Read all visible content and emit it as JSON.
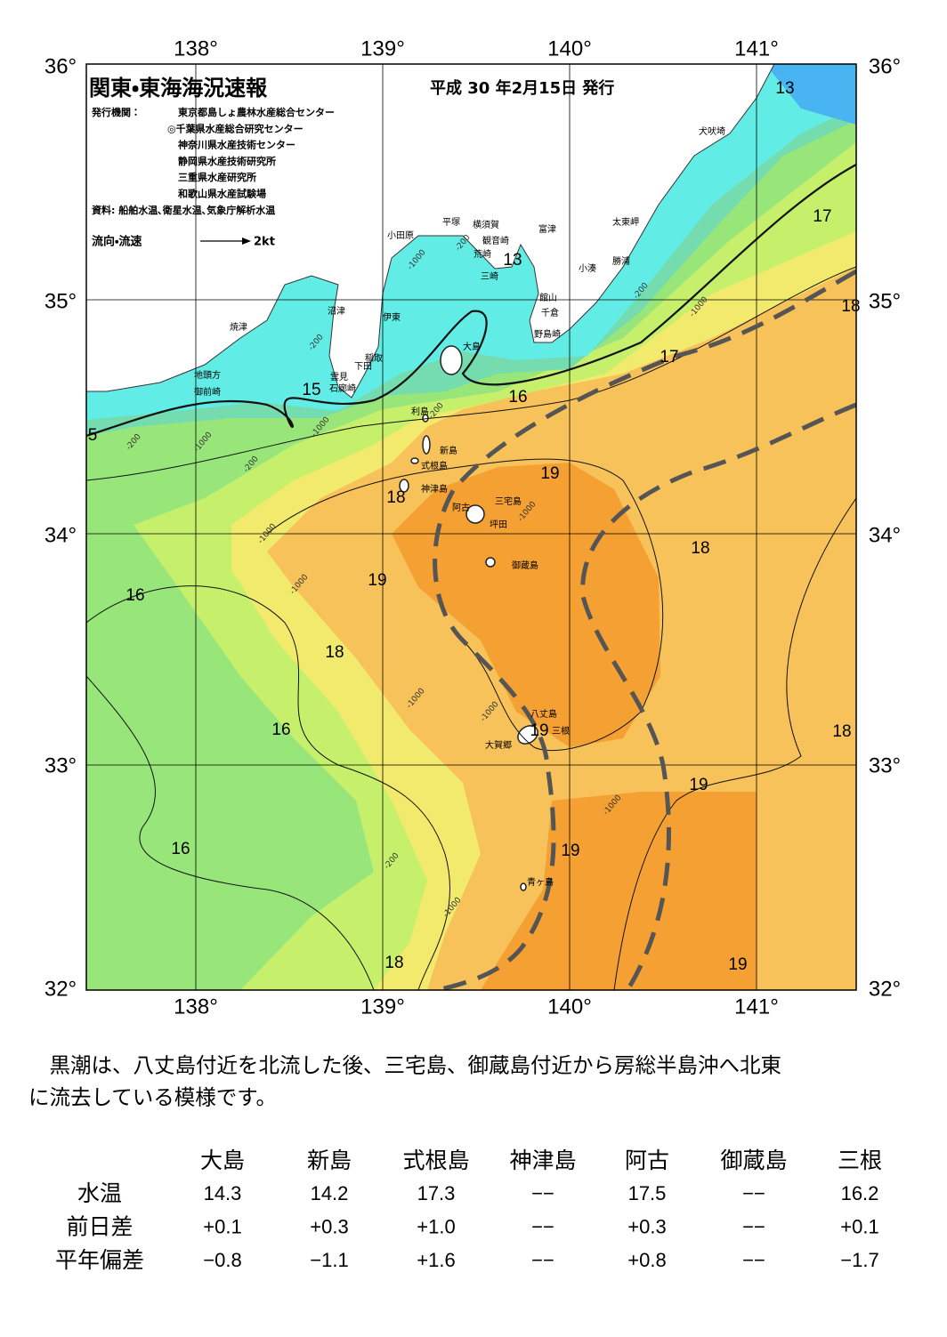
{
  "header": {
    "title": "関東・東海海況速報",
    "date": "平成 30 年2月15日 発行",
    "issuer_label": "発行機関：",
    "issuers": [
      "東京都島しょ農林水産総合センター",
      "◎千葉県水産総合研究センター",
      "神奈川県水産技術センター",
      "静岡県水産技術研究所",
      "三重県水産研究所",
      "和歌山県水産試験場"
    ],
    "source": "資料: 船舶水温､衛星水温､気象庁解析水温",
    "legend_label": "流向・流速",
    "legend_speed": "2kt"
  },
  "map": {
    "lon_labels": [
      "138°",
      "139°",
      "140°",
      "141°"
    ],
    "lat_labels": [
      "36°",
      "35°",
      "34°",
      "33°",
      "32°"
    ],
    "places": [
      "犬吠埼",
      "太東岬",
      "勝浦",
      "小湊",
      "富津",
      "横須賀",
      "観音崎",
      "荒崎",
      "三崎",
      "平塚",
      "小田原",
      "館山",
      "千倉",
      "野島崎",
      "沼津",
      "伊東",
      "焼津",
      "稲取",
      "下田",
      "雲見",
      "石廊崎",
      "地頭方",
      "御前崎",
      "大島",
      "利島",
      "新島",
      "式根島",
      "神津島",
      "三宅島",
      "阿古",
      "坪田",
      "御蔵島",
      "八丈島",
      "三根",
      "大賀郷",
      "青ヶ島"
    ],
    "temperature_labels": [
      "13",
      "13",
      "17",
      "18",
      "17",
      "16",
      "15",
      "5",
      "19",
      "18",
      "19",
      "16",
      "18",
      "18",
      "16",
      "19",
      "18",
      "19",
      "16",
      "19",
      "18",
      "19"
    ],
    "depth_labels": [
      "-200",
      "-1000",
      "-200",
      "-1000",
      "-200",
      "-1000",
      "-200",
      "-1000",
      "-200",
      "-1000",
      "-200",
      "-1000",
      "-1000",
      "-1000",
      "-1000",
      "-1000",
      "-200",
      "-1000"
    ]
  },
  "text": {
    "lines": [
      "　黒潮は、八丈島付近を北流した後、三宅島、御蔵島付近から房総半島沖へ北東",
      "に流去している模様です。"
    ]
  },
  "table": {
    "header": [
      "大島",
      "新島",
      "式根島",
      "神津島",
      "阿古",
      "御蔵島",
      "三根"
    ],
    "rows": [
      [
        "水温",
        "14.3",
        "14.2",
        "17.3",
        "−−",
        "17.5",
        "−−",
        "16.2"
      ],
      [
        "前日差",
        "+0.1",
        "+0.3",
        "+1.0",
        "−−",
        "+0.3",
        "−−",
        "+0.1"
      ],
      [
        "平年偏差",
        "−0.8",
        "−1.1",
        "+1.6",
        "−−",
        "+0.8",
        "−−",
        "−1.7"
      ]
    ]
  }
}
